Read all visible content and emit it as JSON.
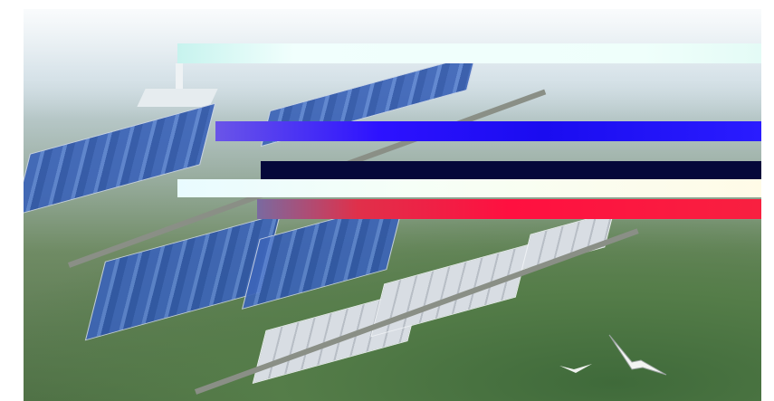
{
  "image": {
    "caption": "",
    "colors": {
      "band_cyan": "#effffb",
      "band_blue": "#2d12ff",
      "band_navy": "#05083a",
      "band_white": "#f6fff7",
      "band_red": "#ff1040",
      "roof_blue": "#3c64b8",
      "roof_grey": "#d8dde3",
      "field_green": "#557d49"
    },
    "icons": [
      "bird-icon",
      "chimney-icon"
    ]
  }
}
